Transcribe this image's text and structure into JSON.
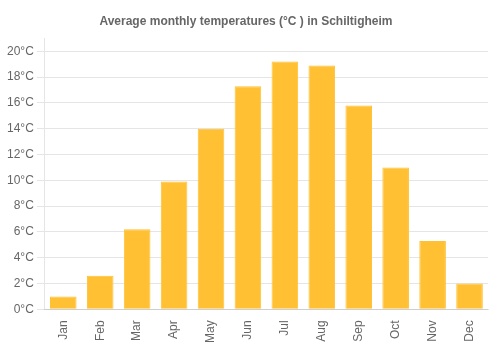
{
  "chart_data": {
    "type": "bar",
    "title": "Average monthly temperatures (°C ) in Schiltigheim",
    "categories": [
      "Jan",
      "Feb",
      "Mar",
      "Apr",
      "May",
      "Jun",
      "Jul",
      "Aug",
      "Sep",
      "Oct",
      "Nov",
      "Dec"
    ],
    "values": [
      1.0,
      2.6,
      6.2,
      9.9,
      14.0,
      17.3,
      19.2,
      18.9,
      15.8,
      11.0,
      5.3,
      2.0
    ],
    "color": "#FFC033",
    "ylim": [
      0,
      21
    ],
    "yticks": [
      {
        "value": 0,
        "label": "0°C"
      },
      {
        "value": 2,
        "label": "2°C"
      },
      {
        "value": 4,
        "label": "4°C"
      },
      {
        "value": 6,
        "label": "6°C"
      },
      {
        "value": 8,
        "label": "8°C"
      },
      {
        "value": 10,
        "label": "10°C"
      },
      {
        "value": 12,
        "label": "12°C"
      },
      {
        "value": 14,
        "label": "14°C"
      },
      {
        "value": 16,
        "label": "16°C"
      },
      {
        "value": 18,
        "label": "18°C"
      },
      {
        "value": 20,
        "label": "20°C"
      }
    ],
    "grid": true
  }
}
